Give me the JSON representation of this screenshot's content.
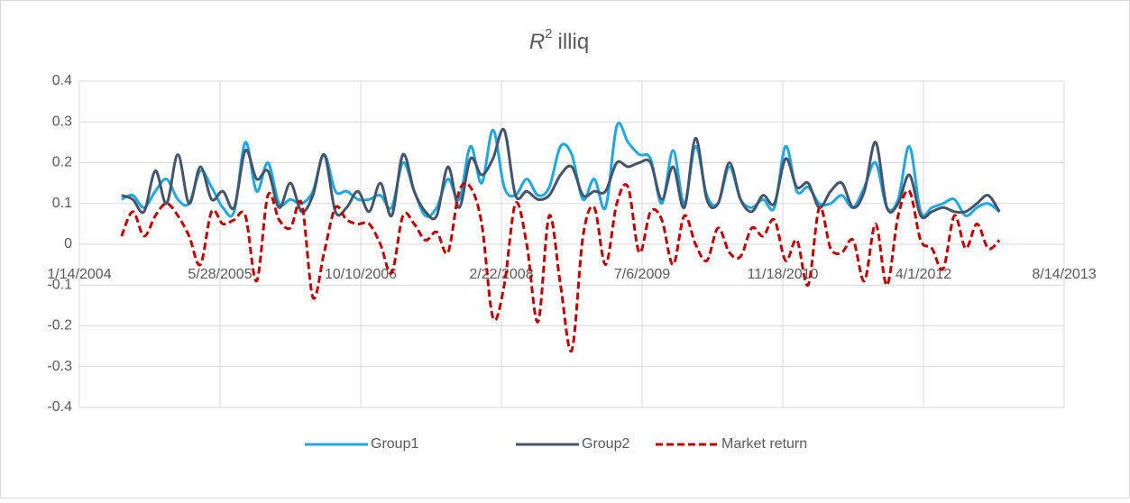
{
  "chart_data": {
    "type": "line",
    "title": {
      "symbol": "R",
      "superscript": "2",
      "text": "illiq"
    },
    "x": [
      38150,
      38190,
      38230,
      38270,
      38310,
      38350,
      38390,
      38430,
      38470,
      38510,
      38550,
      38590,
      38630,
      38670,
      38710,
      38750,
      38790,
      38830,
      38870,
      38910,
      38950,
      38990,
      39030,
      39070,
      39110,
      39150,
      39190,
      39230,
      39270,
      39310,
      39350,
      39390,
      39430,
      39470,
      39510,
      39550,
      39590,
      39630,
      39670,
      39710,
      39750,
      39790,
      39830,
      39870,
      39910,
      39950,
      39990,
      40030,
      40070,
      40110,
      40150,
      40190,
      40230,
      40270,
      40310,
      40350,
      40390,
      40430,
      40470,
      40510,
      40550,
      40590,
      40630,
      40670,
      40710,
      40750,
      40790,
      40830,
      40870,
      40910,
      40950,
      40990,
      41030,
      41070,
      41110,
      41150,
      41190,
      41230,
      41270
    ],
    "series": [
      {
        "name": "Group1",
        "color": "#1ea7e1",
        "dashed": false,
        "values": [
          0.11,
          0.12,
          0.09,
          0.13,
          0.16,
          0.11,
          0.1,
          0.18,
          0.14,
          0.09,
          0.08,
          0.25,
          0.13,
          0.2,
          0.1,
          0.11,
          0.1,
          0.13,
          0.22,
          0.13,
          0.13,
          0.11,
          0.11,
          0.12,
          0.09,
          0.2,
          0.13,
          0.07,
          0.09,
          0.16,
          0.11,
          0.24,
          0.15,
          0.28,
          0.14,
          0.12,
          0.16,
          0.12,
          0.14,
          0.24,
          0.22,
          0.11,
          0.16,
          0.09,
          0.29,
          0.25,
          0.22,
          0.21,
          0.1,
          0.23,
          0.1,
          0.24,
          0.12,
          0.1,
          0.19,
          0.11,
          0.09,
          0.11,
          0.09,
          0.24,
          0.13,
          0.14,
          0.1,
          0.1,
          0.12,
          0.09,
          0.14,
          0.2,
          0.09,
          0.11,
          0.24,
          0.08,
          0.09,
          0.1,
          0.11,
          0.07,
          0.09,
          0.1,
          0.08
        ]
      },
      {
        "name": "Group2",
        "color": "#44546a",
        "dashed": false,
        "values": [
          0.12,
          0.11,
          0.08,
          0.18,
          0.1,
          0.22,
          0.1,
          0.19,
          0.11,
          0.13,
          0.09,
          0.23,
          0.16,
          0.18,
          0.09,
          0.15,
          0.08,
          0.12,
          0.22,
          0.08,
          0.09,
          0.13,
          0.08,
          0.15,
          0.07,
          0.22,
          0.13,
          0.08,
          0.07,
          0.19,
          0.09,
          0.21,
          0.17,
          0.21,
          0.28,
          0.12,
          0.13,
          0.11,
          0.12,
          0.17,
          0.19,
          0.12,
          0.13,
          0.13,
          0.2,
          0.19,
          0.2,
          0.2,
          0.11,
          0.19,
          0.09,
          0.26,
          0.11,
          0.1,
          0.2,
          0.11,
          0.08,
          0.12,
          0.1,
          0.21,
          0.14,
          0.15,
          0.09,
          0.13,
          0.15,
          0.09,
          0.13,
          0.25,
          0.09,
          0.1,
          0.17,
          0.07,
          0.08,
          0.09,
          0.08,
          0.08,
          0.1,
          0.12,
          0.08
        ]
      },
      {
        "name": "Market return",
        "color": "#c00000",
        "dashed": true,
        "values": [
          0.02,
          0.08,
          0.02,
          0.07,
          0.1,
          0.07,
          0.02,
          -0.05,
          0.08,
          0.05,
          0.06,
          0.07,
          -0.09,
          0.12,
          0.06,
          0.04,
          0.1,
          -0.13,
          -0.02,
          0.09,
          0.06,
          0.05,
          0.05,
          0.0,
          -0.07,
          0.07,
          0.05,
          0.01,
          0.03,
          -0.02,
          0.13,
          0.14,
          0.05,
          -0.18,
          -0.1,
          0.1,
          0.0,
          -0.19,
          0.07,
          -0.1,
          -0.26,
          0.02,
          0.09,
          -0.05,
          0.1,
          0.14,
          -0.02,
          0.08,
          0.06,
          -0.05,
          0.07,
          0.0,
          -0.04,
          0.04,
          -0.02,
          -0.03,
          0.04,
          0.02,
          0.06,
          -0.04,
          0.01,
          -0.1,
          0.09,
          -0.01,
          -0.02,
          0.01,
          -0.09,
          0.05,
          -0.1,
          0.07,
          0.13,
          0.01,
          -0.01,
          -0.06,
          0.07,
          -0.01,
          0.05,
          -0.01,
          0.01
        ]
      }
    ],
    "xlim": [
      38000,
      41500
    ],
    "xticks": [
      {
        "value": 38000,
        "label": "1/14/2004"
      },
      {
        "value": 38500,
        "label": "5/28/2005"
      },
      {
        "value": 39000,
        "label": "10/10/2006"
      },
      {
        "value": 39500,
        "label": "2/22/2008"
      },
      {
        "value": 40000,
        "label": "7/6/2009"
      },
      {
        "value": 40500,
        "label": "11/18/2010"
      },
      {
        "value": 41000,
        "label": "4/1/2012"
      },
      {
        "value": 41500,
        "label": "8/14/2013"
      }
    ],
    "ylim": [
      -0.4,
      0.4
    ],
    "yticks": [
      -0.4,
      -0.3,
      -0.2,
      -0.1,
      0,
      0.1,
      0.2,
      0.3,
      0.4
    ],
    "grid": true,
    "legend": "bottom",
    "smooth": true
  }
}
